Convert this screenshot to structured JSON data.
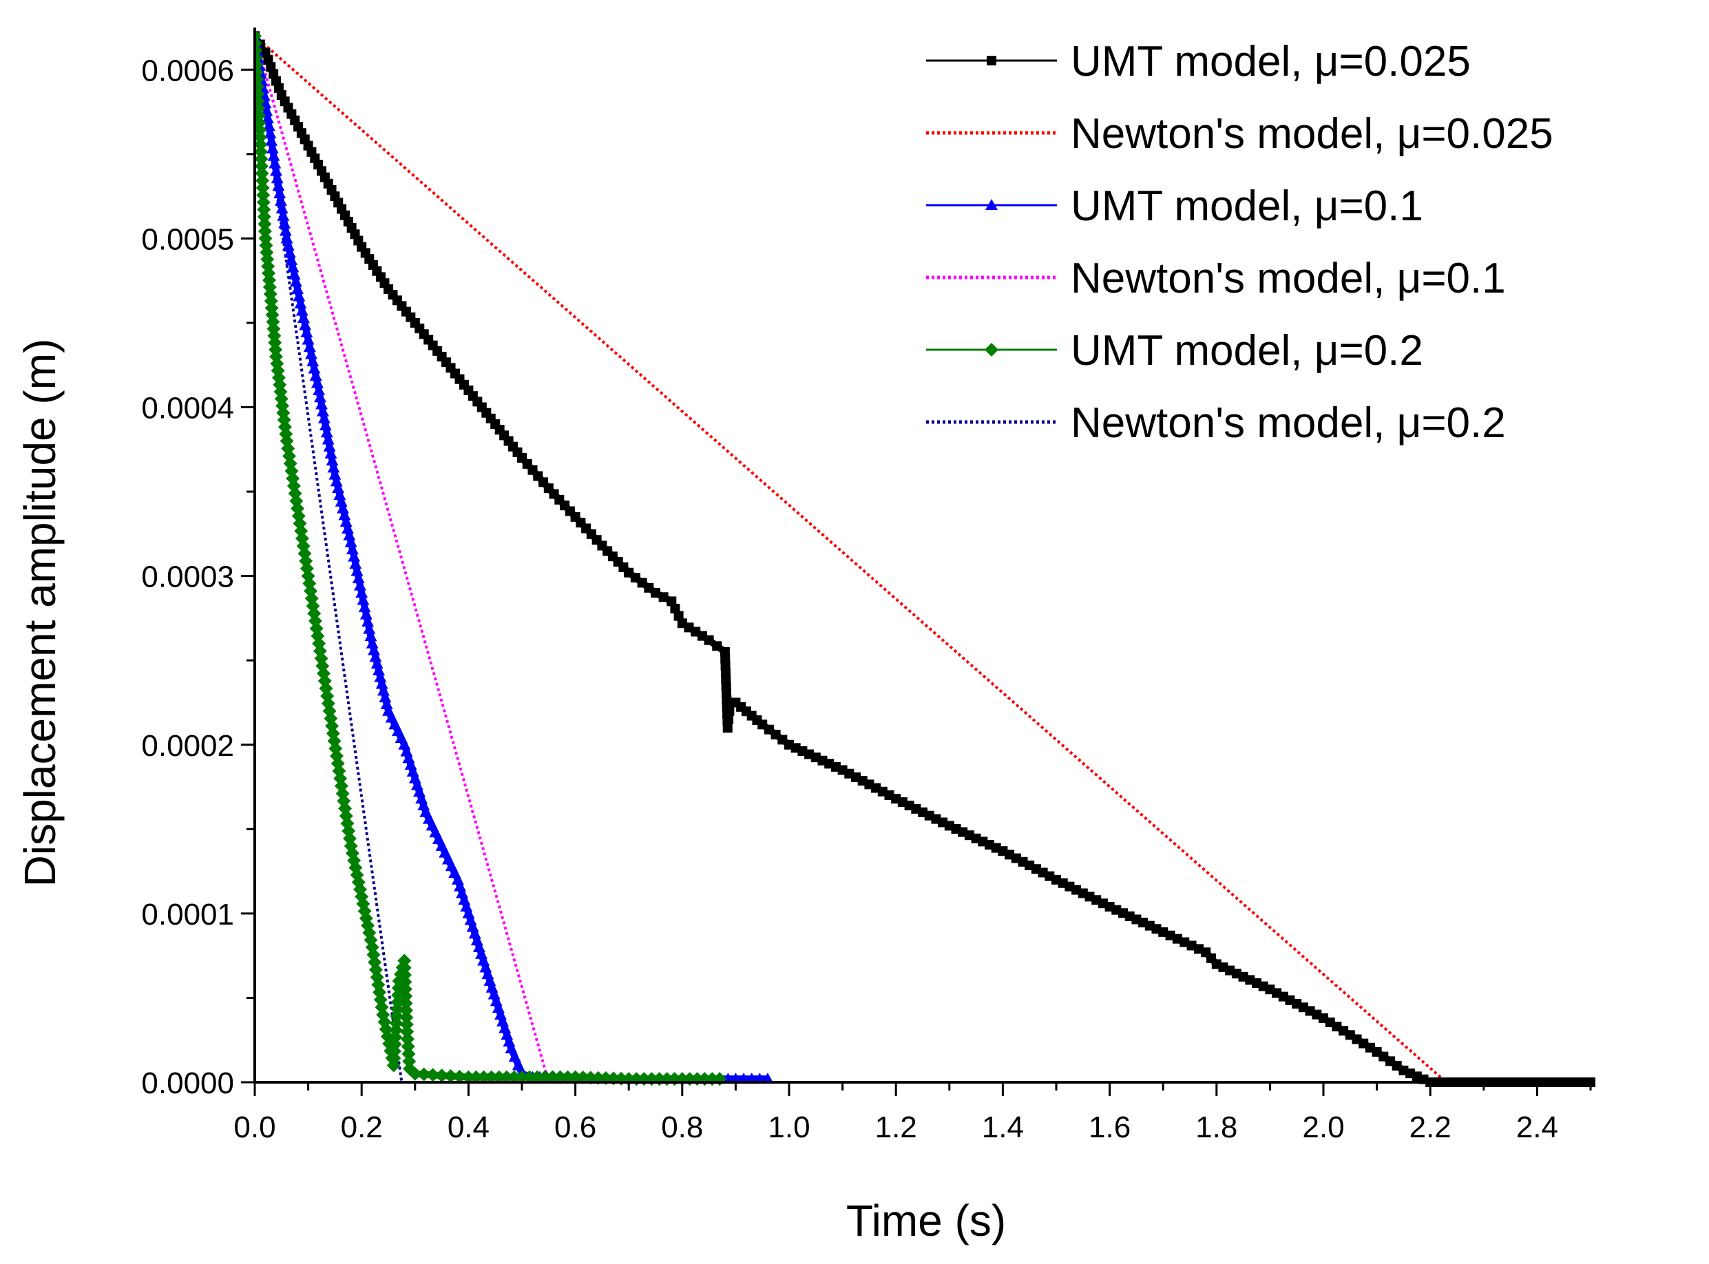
{
  "chart_data": {
    "type": "line",
    "xlabel": "Time (s)",
    "ylabel": "Displacement amplitude (m)",
    "xlim": [
      0,
      2.5
    ],
    "ylim": [
      0,
      0.000625
    ],
    "xticks": [
      0.0,
      0.2,
      0.4,
      0.6,
      0.8,
      1.0,
      1.2,
      1.4,
      1.6,
      1.8,
      2.0,
      2.2,
      2.4
    ],
    "xtick_labels": [
      "0.0",
      "0.2",
      "0.4",
      "0.6",
      "0.8",
      "1.0",
      "1.2",
      "1.4",
      "1.6",
      "1.8",
      "2.0",
      "2.2",
      "2.4"
    ],
    "yticks": [
      0.0,
      0.0001,
      0.0002,
      0.0003,
      0.0004,
      0.0005,
      0.0006
    ],
    "ytick_labels": [
      "0.0000",
      "0.0001",
      "0.0002",
      "0.0003",
      "0.0004",
      "0.0005",
      "0.0006"
    ],
    "grid": false,
    "legend_position": "top-right",
    "series": [
      {
        "name": "UMT model, μ=0.025",
        "color": "#000000",
        "style": "solid",
        "marker": "square",
        "x": [
          0.0,
          0.02,
          0.05,
          0.1,
          0.15,
          0.2,
          0.25,
          0.3,
          0.35,
          0.4,
          0.45,
          0.5,
          0.55,
          0.6,
          0.65,
          0.7,
          0.75,
          0.78,
          0.8,
          0.85,
          0.88,
          0.885,
          0.89,
          0.9,
          0.95,
          1.0,
          1.1,
          1.2,
          1.3,
          1.4,
          1.5,
          1.6,
          1.7,
          1.78,
          1.8,
          1.9,
          2.0,
          2.05,
          2.1,
          2.15,
          2.2,
          2.25,
          2.3,
          2.4,
          2.5
        ],
        "y": [
          0.00062,
          0.00061,
          0.000585,
          0.000555,
          0.000525,
          0.000495,
          0.00047,
          0.00045,
          0.00043,
          0.00041,
          0.00039,
          0.00037,
          0.000352,
          0.000335,
          0.000318,
          0.000302,
          0.00029,
          0.000285,
          0.000272,
          0.000262,
          0.000255,
          0.00021,
          0.000225,
          0.000225,
          0.000212,
          0.0002,
          0.000185,
          0.000168,
          0.000152,
          0.000137,
          0.00012,
          0.000104,
          8.9e-05,
          7.7e-05,
          7e-05,
          5.5e-05,
          3.8e-05,
          2.8e-05,
          1.8e-05,
          7e-06,
          0.0,
          0.0,
          0.0,
          0.0,
          0.0
        ]
      },
      {
        "name": "Newton's model, μ=0.025",
        "color": "#ff0000",
        "style": "dotted",
        "marker": "none",
        "x": [
          0.0,
          2.23,
          2.5
        ],
        "y": [
          0.00062,
          0.0,
          0.0
        ]
      },
      {
        "name": "UMT model, μ=0.1",
        "color": "#0000ff",
        "style": "solid",
        "marker": "triangle",
        "x": [
          0.0,
          0.02,
          0.04,
          0.06,
          0.08,
          0.1,
          0.12,
          0.15,
          0.18,
          0.2,
          0.22,
          0.25,
          0.28,
          0.3,
          0.32,
          0.35,
          0.38,
          0.4,
          0.42,
          0.44,
          0.46,
          0.48,
          0.5,
          0.52,
          0.6,
          0.7,
          0.8,
          0.9,
          0.96
        ],
        "y": [
          0.00062,
          0.00058,
          0.00054,
          0.0005,
          0.00047,
          0.00044,
          0.00041,
          0.00036,
          0.00032,
          0.00029,
          0.00026,
          0.00022,
          0.0002,
          0.00018,
          0.00016,
          0.00014,
          0.00012,
          0.0001,
          8e-05,
          6e-05,
          4e-05,
          2e-05,
          5e-06,
          3e-06,
          3e-06,
          2e-06,
          2e-06,
          2e-06,
          2e-06
        ]
      },
      {
        "name": "Newton's model, μ=0.1",
        "color": "#ff00ff",
        "style": "dotted",
        "marker": "none",
        "x": [
          0.0,
          0.55,
          0.6
        ],
        "y": [
          0.00062,
          0.0,
          0.0
        ]
      },
      {
        "name": "UMT model, μ=0.2",
        "color": "#008000",
        "style": "solid",
        "marker": "diamond",
        "x": [
          0.0,
          0.01,
          0.02,
          0.04,
          0.06,
          0.08,
          0.1,
          0.12,
          0.14,
          0.16,
          0.18,
          0.2,
          0.22,
          0.24,
          0.26,
          0.27,
          0.28,
          0.285,
          0.29,
          0.3,
          0.35,
          0.4,
          0.5,
          0.6,
          0.7,
          0.8,
          0.87
        ],
        "y": [
          0.00062,
          0.00056,
          0.0005,
          0.00043,
          0.00038,
          0.00034,
          0.0003,
          0.00026,
          0.00022,
          0.00018,
          0.00014,
          0.00011,
          8e-05,
          4e-05,
          1e-05,
          6e-05,
          7.2e-05,
          3e-05,
          8e-06,
          5e-06,
          4e-06,
          3e-06,
          3e-06,
          3e-06,
          2e-06,
          2e-06,
          2e-06
        ]
      },
      {
        "name": "Newton's model, μ=0.2",
        "color": "#00008b",
        "style": "dotted",
        "marker": "none",
        "x": [
          0.0,
          0.275,
          0.5
        ],
        "y": [
          0.00062,
          0.0,
          0.0
        ]
      }
    ]
  }
}
